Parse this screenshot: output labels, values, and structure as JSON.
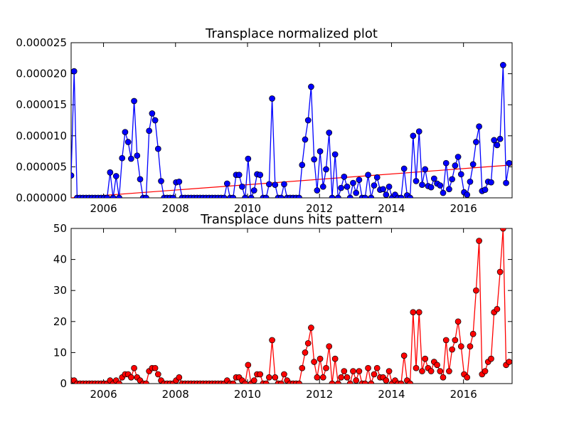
{
  "chart_data": [
    {
      "type": "line",
      "title": "Transplace normalized plot",
      "xlabel": "",
      "ylabel": "",
      "xlim": [
        2005.1,
        2017.35
      ],
      "ylim": [
        0,
        2.5e-05
      ],
      "x_ticks": [
        2006,
        2008,
        2010,
        2012,
        2014,
        2016
      ],
      "x_tick_labels": [
        "2006",
        "2008",
        "2010",
        "2012",
        "2014",
        "2016"
      ],
      "y_ticks": [
        0,
        5e-06,
        1e-05,
        1.5e-05,
        2e-05,
        2.5e-05
      ],
      "y_tick_labels": [
        "0.000000",
        "0.000005",
        "0.000010",
        "0.000015",
        "0.000020",
        "0.000025"
      ],
      "grid": false,
      "colors": {
        "series": "#0000ff",
        "trend": "#ff0000"
      },
      "series": [
        {
          "values": [
            3.6e-06,
            2.04e-05,
            0,
            0,
            0,
            0,
            0,
            0,
            0,
            0,
            0,
            0,
            0,
            4.1e-06,
            0,
            3.5e-06,
            0,
            6.4e-06,
            1.06e-05,
            9e-06,
            6.3e-06,
            1.56e-05,
            6.8e-06,
            3e-06,
            0,
            0,
            1.08e-05,
            1.36e-05,
            1.25e-05,
            7.9e-06,
            2.7e-06,
            0,
            0,
            0,
            0,
            2.5e-06,
            2.6e-06,
            0,
            0,
            0,
            0,
            0,
            0,
            0,
            0,
            0,
            0,
            0,
            0,
            0,
            0,
            0,
            2.3e-06,
            0,
            0,
            3.7e-06,
            3.7e-06,
            1.8e-06,
            0,
            6.3e-06,
            0,
            1.2e-06,
            3.8e-06,
            3.7e-06,
            0,
            0,
            2.2e-06,
            1.6e-05,
            2.1e-06,
            0,
            0,
            2.2e-06,
            0,
            0,
            0,
            0,
            0,
            5.3e-06,
            9.4e-06,
            1.25e-05,
            1.79e-05,
            6.2e-06,
            1.2e-06,
            7.5e-06,
            1.8e-06,
            4.6e-06,
            1.05e-05,
            0,
            7e-06,
            0,
            1.6e-06,
            3.4e-06,
            1.8e-06,
            0,
            2.4e-06,
            8e-07,
            2.9e-06,
            0,
            0,
            3.7e-06,
            0,
            2e-06,
            3.3e-06,
            1.3e-06,
            1.4e-06,
            5e-07,
            1.8e-06,
            0,
            5e-07,
            0,
            0,
            4.7e-06,
            4e-07,
            0,
            1e-05,
            2.7e-06,
            1.07e-05,
            2.1e-06,
            4.6e-06,
            1.9e-06,
            1.7e-06,
            3.1e-06,
            2.3e-06,
            2e-06,
            8e-07,
            5.6e-06,
            1.4e-06,
            3e-06,
            5.2e-06,
            6.6e-06,
            3.8e-06,
            9e-07,
            5e-07,
            2.6e-06,
            5.4e-06,
            9e-06,
            1.15e-05,
            1.1e-06,
            1.3e-06,
            2.6e-06,
            2.5e-06,
            9.3e-06,
            8.5e-06,
            9.5e-06,
            2.14e-05,
            2.4e-06,
            5.6e-06
          ]
        }
      ],
      "trend_line": {
        "x": [
          2005.1,
          2017.35
        ],
        "y": [
          0,
          5.3e-06
        ]
      }
    },
    {
      "type": "line",
      "title": "Transplace duns hits pattern",
      "xlabel": "",
      "ylabel": "",
      "xlim": [
        2005.1,
        2017.35
      ],
      "ylim": [
        0,
        50
      ],
      "x_ticks": [
        2006,
        2008,
        2010,
        2012,
        2014,
        2016
      ],
      "x_tick_labels": [
        "2006",
        "2008",
        "2010",
        "2012",
        "2014",
        "2016"
      ],
      "y_ticks": [
        0,
        10,
        20,
        30,
        40,
        50
      ],
      "y_tick_labels": [
        "0",
        "10",
        "20",
        "30",
        "40",
        "50"
      ],
      "grid": false,
      "colors": {
        "series": "#ff0000"
      },
      "series": [
        {
          "values": [
            1,
            1,
            0,
            0,
            0,
            0,
            0,
            0,
            0,
            0,
            0,
            0,
            0,
            1,
            0,
            1,
            0,
            2,
            3,
            3,
            2,
            5,
            2,
            1,
            0,
            0,
            4,
            5,
            5,
            3,
            1,
            0,
            0,
            0,
            0,
            1,
            2,
            0,
            0,
            0,
            0,
            0,
            0,
            0,
            0,
            0,
            0,
            0,
            0,
            0,
            0,
            0,
            1,
            0,
            0,
            2,
            2,
            1,
            0,
            6,
            0,
            1,
            3,
            3,
            0,
            0,
            2,
            14,
            2,
            0,
            0,
            3,
            1,
            0,
            0,
            0,
            0,
            5,
            10,
            13,
            18,
            7,
            2,
            8,
            2,
            5,
            12,
            0,
            8,
            0,
            2,
            4,
            2,
            0,
            4,
            1,
            4,
            0,
            0,
            5,
            0,
            3,
            5,
            2,
            2,
            1,
            4,
            0,
            1,
            0,
            0,
            9,
            1,
            0,
            23,
            5,
            23,
            4,
            8,
            5,
            4,
            7,
            6,
            4,
            2,
            14,
            4,
            11,
            14,
            20,
            12,
            3,
            2,
            12,
            16,
            30,
            46,
            3,
            4,
            7,
            8,
            23,
            24,
            36,
            50,
            6,
            7
          ]
        }
      ]
    }
  ]
}
